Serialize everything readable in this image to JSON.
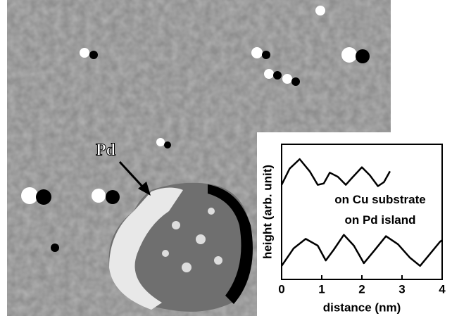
{
  "image": {
    "label": "Pd"
  },
  "chart_data": {
    "type": "line",
    "xlabel": "distance (nm)",
    "ylabel": "height (arb. unit)",
    "xlim": [
      0,
      4
    ],
    "xticks": [
      0,
      1,
      2,
      3,
      4
    ],
    "ylim": [
      0,
      10
    ],
    "series": [
      {
        "name": "on Cu substrate",
        "color": "#000000",
        "x": [
          0,
          0.2,
          0.45,
          0.7,
          0.9,
          1.05,
          1.2,
          1.4,
          1.6,
          1.75,
          2.0,
          2.2,
          2.4,
          2.55,
          2.7
        ],
        "values": [
          7.0,
          8.2,
          8.9,
          8.0,
          7.0,
          7.1,
          7.9,
          7.6,
          7.0,
          7.5,
          8.3,
          7.7,
          6.9,
          7.2,
          8.0
        ]
      },
      {
        "name": "on Pd island",
        "color": "#000000",
        "x": [
          0,
          0.3,
          0.6,
          0.9,
          1.1,
          1.3,
          1.55,
          1.8,
          2.05,
          2.3,
          2.6,
          2.9,
          3.2,
          3.45,
          3.7,
          3.95,
          4.0
        ],
        "values": [
          1.0,
          2.3,
          3.0,
          2.5,
          1.4,
          2.2,
          3.3,
          2.5,
          1.2,
          2.1,
          3.2,
          2.6,
          1.6,
          1.0,
          1.9,
          2.8,
          2.9
        ]
      }
    ]
  }
}
